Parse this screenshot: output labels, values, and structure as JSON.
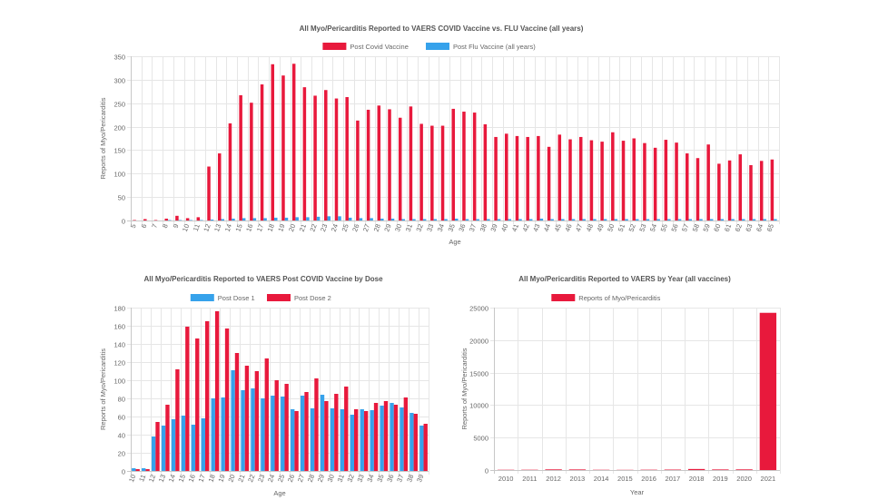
{
  "colors": {
    "covid": "#e8193c",
    "flu": "#36a2eb",
    "dose1": "#36a2eb",
    "dose2": "#e8193c",
    "year": "#e8193c"
  },
  "chart_data": [
    {
      "id": "age-comparison",
      "type": "bar",
      "title": "All Myo/Pericarditis Reported to VAERS COVID Vaccine vs. FLU Vaccine (all years)",
      "xlabel": "Age",
      "ylabel": "Reports of Myo/Pericarditis",
      "ylim": [
        0,
        350
      ],
      "yticks": [
        "0",
        "50",
        "100",
        "150",
        "200",
        "250",
        "300",
        "350"
      ],
      "legend_position": "top",
      "categories": [
        "5",
        "6",
        "7",
        "8",
        "9",
        "10",
        "11",
        "12",
        "13",
        "14",
        "15",
        "16",
        "17",
        "18",
        "19",
        "20",
        "21",
        "22",
        "23",
        "24",
        "25",
        "26",
        "27",
        "28",
        "29",
        "30",
        "31",
        "32",
        "33",
        "34",
        "35",
        "36",
        "37",
        "38",
        "39",
        "40",
        "41",
        "42",
        "43",
        "44",
        "45",
        "46",
        "47",
        "48",
        "49",
        "50",
        "51",
        "52",
        "53",
        "54",
        "55",
        "56",
        "57",
        "58",
        "59",
        "60",
        "61",
        "62",
        "63",
        "64",
        "65"
      ],
      "series": [
        {
          "name": "Post Covid Vaccine",
          "color": "#e8193c",
          "values": [
            1,
            3,
            1,
            4,
            10,
            5,
            7,
            115,
            143,
            207,
            267,
            251,
            290,
            333,
            309,
            334,
            284,
            266,
            278,
            260,
            263,
            213,
            236,
            245,
            237,
            219,
            243,
            206,
            202,
            202,
            238,
            232,
            230,
            205,
            178,
            185,
            180,
            178,
            180,
            157,
            183,
            173,
            178,
            171,
            168,
            188,
            170,
            175,
            165,
            155,
            172,
            166,
            143,
            133,
            162,
            121,
            128,
            141,
            118,
            127,
            130
          ]
        },
        {
          "name": "Post Flu Vaccine (all years)",
          "color": "#36a2eb",
          "values": [
            0,
            0,
            0,
            1,
            1,
            1,
            1,
            2,
            3,
            4,
            5,
            5,
            5,
            6,
            6,
            7,
            7,
            8,
            9,
            9,
            6,
            5,
            5,
            4,
            4,
            3,
            3,
            3,
            3,
            3,
            4,
            3,
            3,
            3,
            3,
            3,
            3,
            3,
            4,
            3,
            3,
            3,
            3,
            3,
            3,
            3,
            3,
            3,
            3,
            3,
            3,
            3,
            3,
            3,
            3,
            3,
            3,
            3,
            3,
            3,
            3
          ]
        }
      ]
    },
    {
      "id": "dose",
      "type": "bar",
      "title": "All Myo/Pericarditis Reported to VAERS Post COVID Vaccine by Dose",
      "xlabel": "Age",
      "ylabel": "Reports of Myo/Pericarditis",
      "ylim": [
        0,
        180
      ],
      "yticks": [
        "0",
        "20",
        "40",
        "60",
        "80",
        "100",
        "120",
        "140",
        "160",
        "180"
      ],
      "legend_position": "top",
      "categories": [
        "10",
        "11",
        "12",
        "13",
        "14",
        "15",
        "16",
        "17",
        "18",
        "19",
        "20",
        "21",
        "22",
        "23",
        "24",
        "25",
        "26",
        "27",
        "28",
        "29",
        "30",
        "31",
        "32",
        "33",
        "34",
        "35",
        "36",
        "37",
        "38",
        "39"
      ],
      "series": [
        {
          "name": "Post Dose 1",
          "color": "#36a2eb",
          "values": [
            3,
            3,
            38,
            50,
            57,
            61,
            51,
            58,
            80,
            81,
            111,
            89,
            91,
            80,
            83,
            82,
            68,
            83,
            69,
            84,
            69,
            68,
            62,
            68,
            67,
            72,
            75,
            70,
            64,
            50
          ]
        },
        {
          "name": "Post Dose 2",
          "color": "#e8193c",
          "values": [
            2,
            2,
            54,
            73,
            112,
            159,
            146,
            165,
            176,
            157,
            130,
            116,
            110,
            124,
            100,
            96,
            66,
            87,
            102,
            77,
            85,
            93,
            68,
            66,
            75,
            77,
            73,
            81,
            63,
            52
          ]
        }
      ]
    },
    {
      "id": "year",
      "type": "bar",
      "title": "All Myo/Pericarditis Reported to VAERS by Year (all vaccines)",
      "xlabel": "Year",
      "ylabel": "Reports of Myo/Pericarditis",
      "ylim": [
        0,
        25000
      ],
      "yticks": [
        "0",
        "5000",
        "10000",
        "15000",
        "20000",
        "25000"
      ],
      "legend_position": "top",
      "categories": [
        "2010",
        "2011",
        "2012",
        "2013",
        "2014",
        "2015",
        "2016",
        "2017",
        "2018",
        "2019",
        "2020",
        "2021"
      ],
      "series": [
        {
          "name": "Reports of Myo/Pericarditis",
          "color": "#e8193c",
          "values": [
            40,
            45,
            100,
            90,
            40,
            30,
            50,
            70,
            160,
            90,
            100,
            24200
          ]
        }
      ]
    }
  ]
}
